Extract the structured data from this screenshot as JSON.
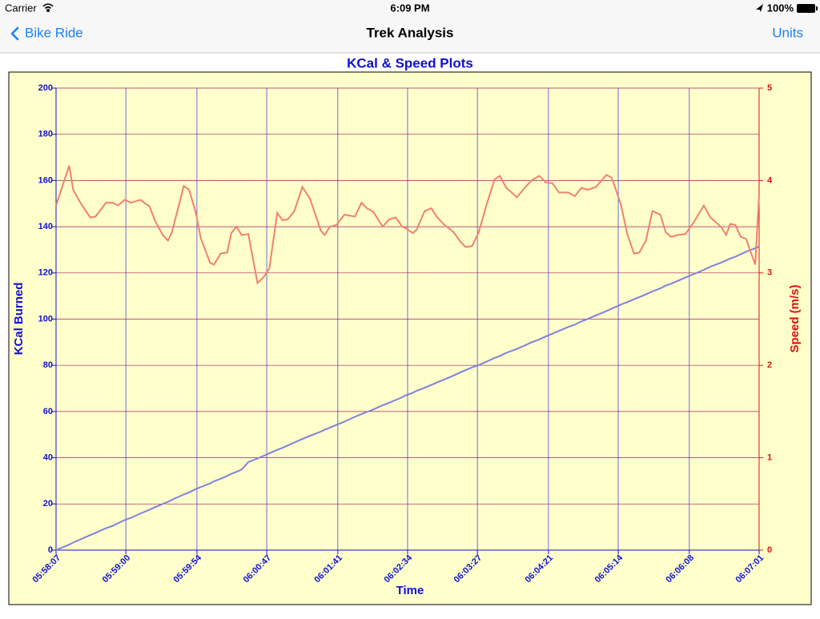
{
  "status_bar": {
    "carrier": "Carrier",
    "time": "6:09 PM",
    "battery": "100%"
  },
  "nav_bar": {
    "back": "Bike Ride",
    "title": "Trek Analysis",
    "action": "Units"
  },
  "chart_data": {
    "type": "line",
    "title": "KCal & Speed Plots",
    "x_label": "Time",
    "y_label": "KCal Burned",
    "y2_label": "Speed (m/s)",
    "x": [
      "05:58:07",
      "05:58:17",
      "05:58:20",
      "05:58:25",
      "05:58:33",
      "05:58:37",
      "05:58:45",
      "05:58:50",
      "05:58:54",
      "05:58:59",
      "05:59:04",
      "05:59:11",
      "05:59:18",
      "05:59:22",
      "05:59:28",
      "05:59:32",
      "05:59:35",
      "05:59:44",
      "05:59:48",
      "05:59:53",
      "05:59:57",
      "06:00:04",
      "06:00:07",
      "06:00:12",
      "06:00:17",
      "06:00:20",
      "06:00:24",
      "06:00:28",
      "06:00:33",
      "06:00:37",
      "06:00:40",
      "06:00:45",
      "06:00:49",
      "06:00:55",
      "06:00:59",
      "06:01:03",
      "06:01:08",
      "06:01:14",
      "06:01:20",
      "06:01:28",
      "06:01:31",
      "06:01:35",
      "06:01:40",
      "06:01:46",
      "06:01:54",
      "06:01:59",
      "06:02:03",
      "06:02:08",
      "06:02:15",
      "06:02:20",
      "06:02:25",
      "06:02:30",
      "06:02:33",
      "06:02:38",
      "06:02:41",
      "06:02:47",
      "06:02:52",
      "06:02:56",
      "06:03:02",
      "06:03:09",
      "06:03:14",
      "06:03:18",
      "06:03:23",
      "06:03:28",
      "06:03:34",
      "06:03:40",
      "06:03:44",
      "06:03:49",
      "06:03:57",
      "06:04:03",
      "06:04:08",
      "06:04:14",
      "06:04:19",
      "06:04:24",
      "06:04:29",
      "06:04:36",
      "06:04:41",
      "06:04:46",
      "06:04:51",
      "06:04:57",
      "06:05:05",
      "06:05:09",
      "06:05:16",
      "06:05:21",
      "06:05:26",
      "06:05:30",
      "06:05:35",
      "06:05:40",
      "06:05:46",
      "06:05:50",
      "06:05:54",
      "06:05:59",
      "06:06:05",
      "06:06:11",
      "06:06:19",
      "06:06:24",
      "06:06:32",
      "06:06:36",
      "06:06:39",
      "06:06:43",
      "06:06:47",
      "06:06:51",
      "06:06:58",
      "06:07:01"
    ],
    "series": [
      {
        "color": "#8080e0",
        "values": [
          0,
          2.4,
          3.3,
          4.5,
          6.5,
          7.5,
          9.5,
          10.5,
          11.6,
          13.0,
          14.0,
          15.8,
          17.5,
          18.5,
          20.0,
          20.9,
          21.8,
          24.1,
          25.0,
          26.4,
          27.3,
          28.9,
          29.8,
          30.9,
          32.1,
          33.0,
          33.9,
          34.9,
          38.1,
          39.0,
          39.7,
          40.9,
          41.9,
          43.4,
          44.3,
          45.3,
          46.6,
          48.1,
          49.5,
          51.3,
          52.1,
          53.0,
          54.2,
          55.6,
          57.7,
          58.9,
          59.8,
          60.9,
          62.7,
          63.8,
          65.0,
          66.2,
          67.1,
          68.1,
          69.0,
          70.3,
          71.5,
          72.5,
          73.9,
          75.6,
          76.9,
          77.9,
          79.1,
          80.1,
          81.6,
          83.2,
          84.0,
          85.4,
          87.1,
          88.6,
          89.9,
          91.2,
          92.5,
          93.7,
          94.9,
          96.6,
          97.6,
          99.0,
          100.1,
          101.6,
          103.5,
          104.5,
          106.3,
          107.4,
          108.6,
          109.5,
          110.7,
          112.0,
          113.3,
          114.5,
          115.3,
          116.5,
          118.0,
          119.4,
          121.3,
          122.7,
          124.4,
          125.4,
          126.2,
          127.0,
          128.1,
          129.1,
          130.7,
          131.4
        ]
      },
      {
        "color": "#f08070",
        "axis": "y2",
        "values": [
          3.73,
          4.16,
          3.9,
          3.77,
          3.6,
          3.61,
          3.76,
          3.76,
          3.73,
          3.79,
          3.76,
          3.79,
          3.72,
          3.57,
          3.41,
          3.35,
          3.44,
          3.94,
          3.9,
          3.66,
          3.37,
          3.11,
          3.09,
          3.21,
          3.22,
          3.43,
          3.5,
          3.41,
          3.42,
          3.12,
          2.89,
          2.96,
          3.05,
          3.65,
          3.57,
          3.58,
          3.67,
          3.93,
          3.8,
          3.46,
          3.41,
          3.5,
          3.52,
          3.63,
          3.61,
          3.76,
          3.7,
          3.66,
          3.5,
          3.58,
          3.6,
          3.5,
          3.48,
          3.43,
          3.47,
          3.67,
          3.7,
          3.61,
          3.52,
          3.44,
          3.34,
          3.28,
          3.29,
          3.44,
          3.74,
          4.01,
          4.05,
          3.92,
          3.82,
          3.92,
          4.0,
          4.05,
          3.98,
          3.97,
          3.87,
          3.87,
          3.83,
          3.92,
          3.9,
          3.93,
          4.06,
          4.03,
          3.74,
          3.41,
          3.21,
          3.22,
          3.35,
          3.67,
          3.63,
          3.44,
          3.39,
          3.41,
          3.42,
          3.54,
          3.73,
          3.6,
          3.5,
          3.41,
          3.53,
          3.52,
          3.39,
          3.37,
          3.09,
          3.85
        ]
      }
    ],
    "xlim": [
      "05:58:07",
      "06:07:01"
    ],
    "xticks": [
      "05:58:07",
      "05:59:00",
      "05:59:54",
      "06:00:47",
      "06:01:41",
      "06:02:34",
      "06:03:27",
      "06:04:21",
      "06:05:14",
      "06:06:08",
      "06:07:01"
    ],
    "ylim": [
      0,
      200
    ],
    "yticks": [
      0,
      20,
      40,
      60,
      80,
      100,
      120,
      140,
      160,
      180,
      200
    ],
    "y2lim": [
      0,
      5
    ],
    "y2ticks": [
      0,
      1,
      2,
      3,
      4,
      5
    ],
    "grid": true,
    "background": "#ffffcc"
  }
}
